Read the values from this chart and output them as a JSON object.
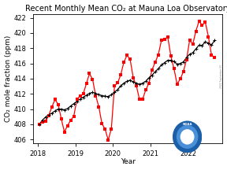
{
  "title": "Recent Monthly Mean CO₂ at Mauna Loa Observatory",
  "xlabel": "Year",
  "ylabel": "CO₂ mole fraction (ppm)",
  "ylim": [
    405.5,
    422.5
  ],
  "xlim": [
    2017.88,
    2022.92
  ],
  "yticks": [
    406,
    408,
    410,
    412,
    414,
    416,
    418,
    420,
    422
  ],
  "xticks": [
    2018,
    2019,
    2020,
    2021,
    2022
  ],
  "bg_color": "#ffffff",
  "monthly_dates": [
    2018.042,
    2018.125,
    2018.208,
    2018.292,
    2018.375,
    2018.458,
    2018.542,
    2018.625,
    2018.708,
    2018.792,
    2018.875,
    2018.958,
    2019.042,
    2019.125,
    2019.208,
    2019.292,
    2019.375,
    2019.458,
    2019.542,
    2019.625,
    2019.708,
    2019.792,
    2019.875,
    2019.958,
    2020.042,
    2020.125,
    2020.208,
    2020.292,
    2020.375,
    2020.458,
    2020.542,
    2020.625,
    2020.708,
    2020.792,
    2020.875,
    2020.958,
    2021.042,
    2021.125,
    2021.208,
    2021.292,
    2021.375,
    2021.458,
    2021.542,
    2021.625,
    2021.708,
    2021.792,
    2021.875,
    2021.958,
    2022.042,
    2022.125,
    2022.208,
    2022.292,
    2022.375,
    2022.458,
    2022.542,
    2022.625,
    2022.708
  ],
  "monthly_co2": [
    407.98,
    408.31,
    408.39,
    409.16,
    410.28,
    411.25,
    410.62,
    408.71,
    406.99,
    407.83,
    408.52,
    409.07,
    411.27,
    411.75,
    411.97,
    413.32,
    414.66,
    413.91,
    411.75,
    410.27,
    408.07,
    407.35,
    405.92,
    407.41,
    413.06,
    413.43,
    414.51,
    416.18,
    417.07,
    416.53,
    414.07,
    413.03,
    411.25,
    411.34,
    412.52,
    413.4,
    415.17,
    416.15,
    417.14,
    419.05,
    419.13,
    419.51,
    416.97,
    415.31,
    413.28,
    413.95,
    414.91,
    416.47,
    419.05,
    418.51,
    420.23,
    421.57,
    420.99,
    421.44,
    419.51,
    417.08,
    416.77
  ],
  "deseason_co2": [
    408.02,
    408.55,
    408.95,
    409.25,
    409.45,
    409.75,
    410.0,
    409.98,
    409.9,
    410.05,
    410.4,
    410.7,
    411.0,
    411.3,
    411.55,
    411.8,
    412.05,
    412.2,
    412.05,
    411.9,
    411.75,
    411.7,
    411.62,
    411.9,
    412.2,
    412.55,
    413.05,
    413.4,
    413.65,
    413.8,
    413.55,
    413.4,
    413.25,
    413.4,
    413.65,
    414.1,
    414.45,
    414.9,
    415.3,
    415.8,
    416.1,
    416.4,
    416.4,
    416.25,
    415.9,
    415.98,
    416.2,
    416.75,
    417.2,
    417.4,
    417.9,
    418.4,
    418.35,
    418.85,
    418.65,
    418.42,
    419.05
  ],
  "title_fontsize": 7.0,
  "label_fontsize": 6.5,
  "tick_fontsize": 6.0
}
